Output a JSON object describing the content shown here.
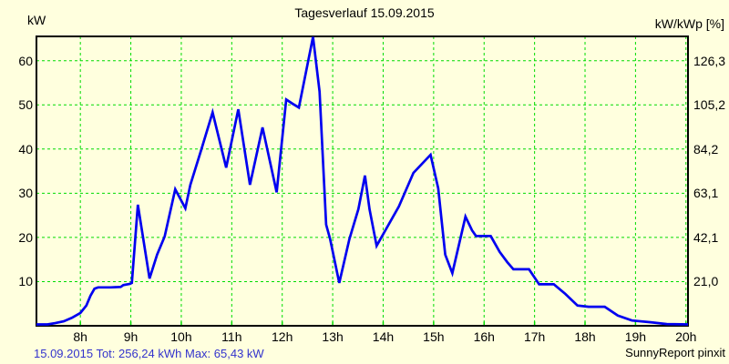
{
  "header": {
    "title": "Tagesverlauf 15.09.2015",
    "left_unit": "kW",
    "right_unit": "kW/kWp [%]"
  },
  "footer": {
    "status_line": "15.09.2015 Tot: 256,24 kWh Max: 65,43 kW",
    "credit": "SunnyReport pinxit"
  },
  "colors": {
    "background": "#FFFFDE",
    "grid_green": "#00DC00",
    "curve_blue": "#0000F0",
    "status_blue": "#3333CC",
    "axis_black": "#000000",
    "text_black": "#000000"
  },
  "chart_data": {
    "type": "line",
    "title": "Tagesverlauf 15.09.2015",
    "ylabel_left": "kW",
    "ylabel_right": "kW/kWp [%]",
    "xlim": [
      7.13,
      20.04
    ],
    "ylim": [
      0,
      65.5
    ],
    "grid": true,
    "x_ticks": {
      "hours": [
        8,
        9,
        10,
        11,
        12,
        13,
        14,
        15,
        16,
        17,
        18,
        19,
        20
      ],
      "labels": [
        "8h",
        "9h",
        "10h",
        "11h",
        "12h",
        "13h",
        "14h",
        "15h",
        "16h",
        "17h",
        "18h",
        "19h",
        "20h"
      ]
    },
    "y_ticks": {
      "values": [
        10,
        20,
        30,
        40,
        50,
        60
      ],
      "left_labels": [
        "10",
        "20",
        "30",
        "40",
        "50",
        "60"
      ],
      "right_labels": [
        "21,0",
        "42,1",
        "63,1",
        "84,2",
        "105,2",
        "126,3"
      ]
    },
    "summary": {
      "date": "15.09.2015",
      "total_kwh": "256,24",
      "max_kw": "65,43"
    },
    "series": [
      {
        "name": "kW",
        "points": [
          [
            7.13,
            0.3
          ],
          [
            7.35,
            0.3
          ],
          [
            7.5,
            0.6
          ],
          [
            7.67,
            1.0
          ],
          [
            7.83,
            1.8
          ],
          [
            8.0,
            2.9
          ],
          [
            8.12,
            4.6
          ],
          [
            8.2,
            6.8
          ],
          [
            8.28,
            8.4
          ],
          [
            8.35,
            8.7
          ],
          [
            8.6,
            8.7
          ],
          [
            8.8,
            8.8
          ],
          [
            8.85,
            9.2
          ],
          [
            8.98,
            9.5
          ],
          [
            9.02,
            9.7
          ],
          [
            9.14,
            27.4
          ],
          [
            9.37,
            10.7
          ],
          [
            9.52,
            16.1
          ],
          [
            9.67,
            20.2
          ],
          [
            9.88,
            30.9
          ],
          [
            10.08,
            26.6
          ],
          [
            10.18,
            31.9
          ],
          [
            10.4,
            40.0
          ],
          [
            10.62,
            48.3
          ],
          [
            10.89,
            35.8
          ],
          [
            11.13,
            49.0
          ],
          [
            11.36,
            31.9
          ],
          [
            11.61,
            44.9
          ],
          [
            11.89,
            30.2
          ],
          [
            12.08,
            51.2
          ],
          [
            12.2,
            50.3
          ],
          [
            12.33,
            49.4
          ],
          [
            12.61,
            65.4
          ],
          [
            12.74,
            53.0
          ],
          [
            12.87,
            22.9
          ],
          [
            12.95,
            19.6
          ],
          [
            13.13,
            9.7
          ],
          [
            13.33,
            19.6
          ],
          [
            13.51,
            26.4
          ],
          [
            13.64,
            34.0
          ],
          [
            13.73,
            26.4
          ],
          [
            13.87,
            18.1
          ],
          [
            14.31,
            27.0
          ],
          [
            14.6,
            34.6
          ],
          [
            14.94,
            38.7
          ],
          [
            15.09,
            31.1
          ],
          [
            15.23,
            16.1
          ],
          [
            15.37,
            11.9
          ],
          [
            15.63,
            24.7
          ],
          [
            15.76,
            21.6
          ],
          [
            15.84,
            20.3
          ],
          [
            16.13,
            20.3
          ],
          [
            16.31,
            16.7
          ],
          [
            16.46,
            14.4
          ],
          [
            16.58,
            12.8
          ],
          [
            16.89,
            12.8
          ],
          [
            17.09,
            9.4
          ],
          [
            17.38,
            9.4
          ],
          [
            17.61,
            7.2
          ],
          [
            17.85,
            4.6
          ],
          [
            18.07,
            4.3
          ],
          [
            18.39,
            4.3
          ],
          [
            18.65,
            2.3
          ],
          [
            18.93,
            1.2
          ],
          [
            19.3,
            0.8
          ],
          [
            19.62,
            0.4
          ],
          [
            20.04,
            0.3
          ]
        ]
      }
    ]
  }
}
